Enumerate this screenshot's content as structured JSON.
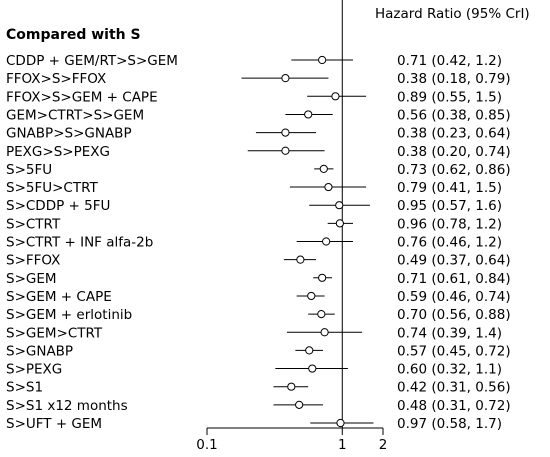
{
  "chart_data": {
    "type": "forest",
    "header": "Hazard Ratio (95% CrI)",
    "group_label": "Compared with S",
    "x_scale": "log",
    "xlim": [
      0.1,
      2
    ],
    "x_ticks": [
      {
        "value": 0.1,
        "label": "0.1"
      },
      {
        "value": 1,
        "label": "1"
      },
      {
        "value": 2,
        "label": "2"
      }
    ],
    "reference_line": 1,
    "rows": [
      {
        "label": "CDDP + GEM/RT>S>GEM",
        "hr": 0.71,
        "lo": 0.42,
        "hi": 1.2,
        "text": "0.71 (0.42, 1.2)"
      },
      {
        "label": "FFOX>S>FFOX",
        "hr": 0.38,
        "lo": 0.18,
        "hi": 0.79,
        "text": "0.38 (0.18, 0.79)"
      },
      {
        "label": "FFOX>S>GEM + CAPE",
        "hr": 0.89,
        "lo": 0.55,
        "hi": 1.5,
        "text": "0.89 (0.55, 1.5)"
      },
      {
        "label": "GEM>CTRT>S>GEM",
        "hr": 0.56,
        "lo": 0.38,
        "hi": 0.85,
        "text": "0.56 (0.38, 0.85)"
      },
      {
        "label": "GNABP>S>GNABP",
        "hr": 0.38,
        "lo": 0.23,
        "hi": 0.64,
        "text": "0.38 (0.23, 0.64)"
      },
      {
        "label": "PEXG>S>PEXG",
        "hr": 0.38,
        "lo": 0.2,
        "hi": 0.74,
        "text": "0.38 (0.20, 0.74)"
      },
      {
        "label": "S>5FU",
        "hr": 0.73,
        "lo": 0.62,
        "hi": 0.86,
        "text": "0.73 (0.62, 0.86)"
      },
      {
        "label": "S>5FU>CTRT",
        "hr": 0.79,
        "lo": 0.41,
        "hi": 1.5,
        "text": "0.79 (0.41, 1.5)"
      },
      {
        "label": "S>CDDP + 5FU",
        "hr": 0.95,
        "lo": 0.57,
        "hi": 1.6,
        "text": "0.95 (0.57, 1.6)"
      },
      {
        "label": "S>CTRT",
        "hr": 0.96,
        "lo": 0.78,
        "hi": 1.2,
        "text": "0.96 (0.78, 1.2)"
      },
      {
        "label": "S>CTRT + INF alfa-2b",
        "hr": 0.76,
        "lo": 0.46,
        "hi": 1.2,
        "text": "0.76 (0.46, 1.2)"
      },
      {
        "label": "S>FFOX",
        "hr": 0.49,
        "lo": 0.37,
        "hi": 0.64,
        "text": "0.49 (0.37, 0.64)"
      },
      {
        "label": "S>GEM",
        "hr": 0.71,
        "lo": 0.61,
        "hi": 0.84,
        "text": "0.71 (0.61, 0.84)"
      },
      {
        "label": "S>GEM + CAPE",
        "hr": 0.59,
        "lo": 0.46,
        "hi": 0.74,
        "text": "0.59 (0.46, 0.74)"
      },
      {
        "label": "S>GEM + erlotinib",
        "hr": 0.7,
        "lo": 0.56,
        "hi": 0.88,
        "text": "0.70 (0.56, 0.88)"
      },
      {
        "label": "S>GEM>CTRT",
        "hr": 0.74,
        "lo": 0.39,
        "hi": 1.4,
        "text": "0.74 (0.39, 1.4)"
      },
      {
        "label": "S>GNABP",
        "hr": 0.57,
        "lo": 0.45,
        "hi": 0.72,
        "text": "0.57 (0.45, 0.72)"
      },
      {
        "label": "S>PEXG",
        "hr": 0.6,
        "lo": 0.32,
        "hi": 1.1,
        "text": "0.60 (0.32, 1.1)"
      },
      {
        "label": "S>S1",
        "hr": 0.42,
        "lo": 0.31,
        "hi": 0.56,
        "text": "0.42 (0.31, 0.56)"
      },
      {
        "label": "S>S1 x12 months",
        "hr": 0.48,
        "lo": 0.31,
        "hi": 0.72,
        "text": "0.48 (0.31, 0.72)"
      },
      {
        "label": "S>UFT + GEM",
        "hr": 0.97,
        "lo": 0.58,
        "hi": 1.7,
        "text": "0.97 (0.58, 1.7)"
      }
    ]
  }
}
